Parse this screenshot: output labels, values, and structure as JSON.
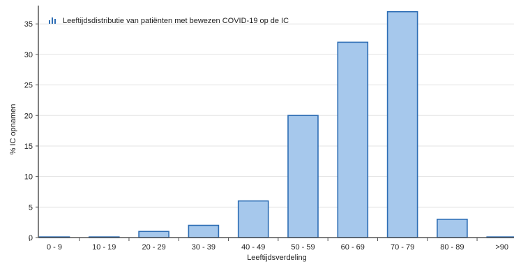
{
  "chart_data": {
    "type": "bar",
    "title": "Leeftijdsdistributie van patiënten met bewezen COVID-19 op de IC",
    "xlabel": "Leeftijdsverdeling",
    "ylabel": "% IC opnamen",
    "ylim": [
      0,
      38
    ],
    "yticks": [
      0,
      5,
      10,
      15,
      20,
      25,
      30,
      35
    ],
    "grid": true,
    "legend_position": "top-left",
    "categories": [
      "0 - 9",
      "10 - 19",
      "20 - 29",
      "30 - 39",
      "40 - 49",
      "50 - 59",
      "60 - 69",
      "70 - 79",
      "80 - 89",
      ">90"
    ],
    "values": [
      0.1,
      0.1,
      1,
      2,
      6,
      20,
      32,
      37,
      3,
      0.1
    ],
    "colors": {
      "bar_fill": "#a6c8ec",
      "bar_stroke": "#2d6db4",
      "grid": "#e3e3e3",
      "axis": "#555555",
      "legend_icon": "#2d6db4"
    }
  }
}
